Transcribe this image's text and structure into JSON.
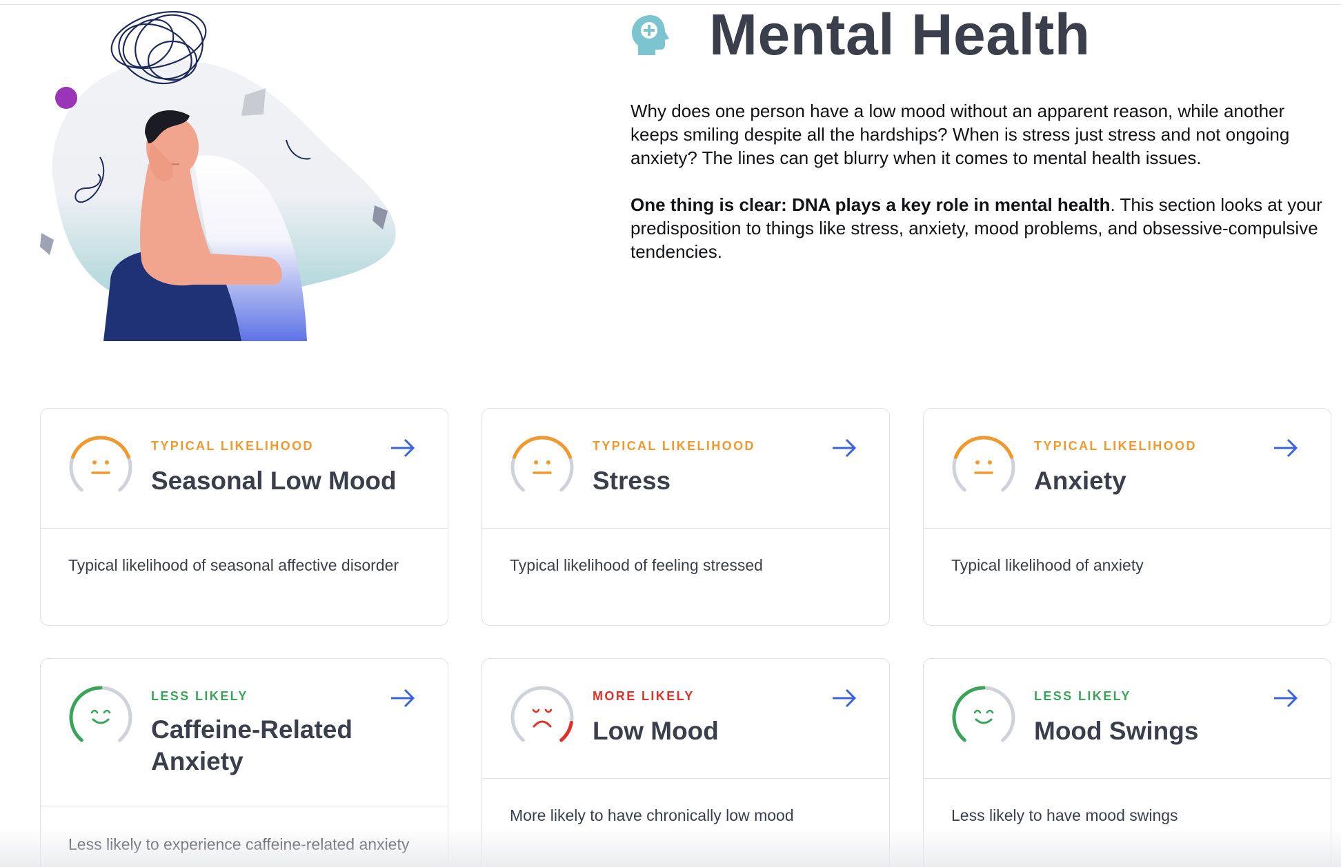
{
  "header": {
    "title": "Mental Health",
    "icon": "head-brain-icon",
    "icon_color": "#7cc4d0"
  },
  "intro": {
    "paragraph1": "Why does one person have a low mood without an apparent reason, while another keeps smiling despite all the hardships? When is stress just stress and not ongoing anxiety? The lines can get blurry when it comes to mental health issues.",
    "paragraph2_bold": "One thing is clear: DNA plays a key role in mental health",
    "paragraph2_rest": ". This section looks at your predisposition to things like stress, anxiety, mood problems, and obsessive-compulsive tendencies."
  },
  "colors": {
    "typical": "#f09a2e",
    "less": "#3aa55a",
    "more": "#e0302a",
    "arrow": "#3a63e0",
    "text_dark": "#3a3f4b"
  },
  "cards": [
    {
      "likelihood": "TYPICAL LIKELIHOOD",
      "level": "typical",
      "face": "neutral",
      "title": "Seasonal Low Mood",
      "description": "Typical likelihood of seasonal affective disorder"
    },
    {
      "likelihood": "TYPICAL LIKELIHOOD",
      "level": "typical",
      "face": "neutral",
      "title": "Stress",
      "description": "Typical likelihood of feeling stressed"
    },
    {
      "likelihood": "TYPICAL LIKELIHOOD",
      "level": "typical",
      "face": "neutral",
      "title": "Anxiety",
      "description": "Typical likelihood of anxiety"
    },
    {
      "likelihood": "LESS LIKELY",
      "level": "less",
      "face": "happy",
      "title": "Caffeine-Related Anxiety",
      "description": "Less likely to experience caffeine-related anxiety"
    },
    {
      "likelihood": "MORE LIKELY",
      "level": "more",
      "face": "sad",
      "title": "Low Mood",
      "description": "More likely to have chronically low mood"
    },
    {
      "likelihood": "LESS LIKELY",
      "level": "less",
      "face": "happy",
      "title": "Mood Swings",
      "description": "Less likely to have mood swings"
    }
  ]
}
